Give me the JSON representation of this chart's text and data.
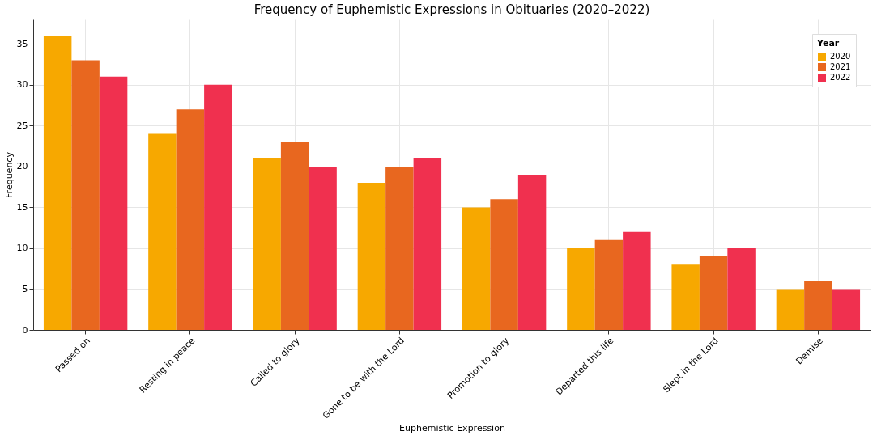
{
  "chart_data": {
    "type": "bar",
    "title": "Frequency of Euphemistic Expressions in Obituaries (2020–2022)",
    "xlabel": "Euphemistic Expression",
    "ylabel": "Frequency",
    "legend_title": "Year",
    "categories": [
      "Passed on",
      "Resting in peace",
      "Called to glory",
      "Gone to be with the Lord",
      "Promotion to glory",
      "Departed this life",
      "Slept in the Lord",
      "Demise"
    ],
    "series": [
      {
        "name": "2020",
        "color": "#f7a800",
        "values": [
          36,
          24,
          21,
          18,
          15,
          10,
          8,
          5
        ]
      },
      {
        "name": "2021",
        "color": "#e8671f",
        "values": [
          33,
          27,
          23,
          20,
          16,
          11,
          9,
          6
        ]
      },
      {
        "name": "2022",
        "color": "#f0304f",
        "values": [
          31,
          30,
          20,
          21,
          19,
          12,
          10,
          5
        ]
      }
    ],
    "ylim": [
      0,
      38
    ],
    "yticks": [
      0,
      5,
      10,
      15,
      20,
      25,
      30,
      35
    ],
    "grid": true,
    "legend": "top right"
  }
}
